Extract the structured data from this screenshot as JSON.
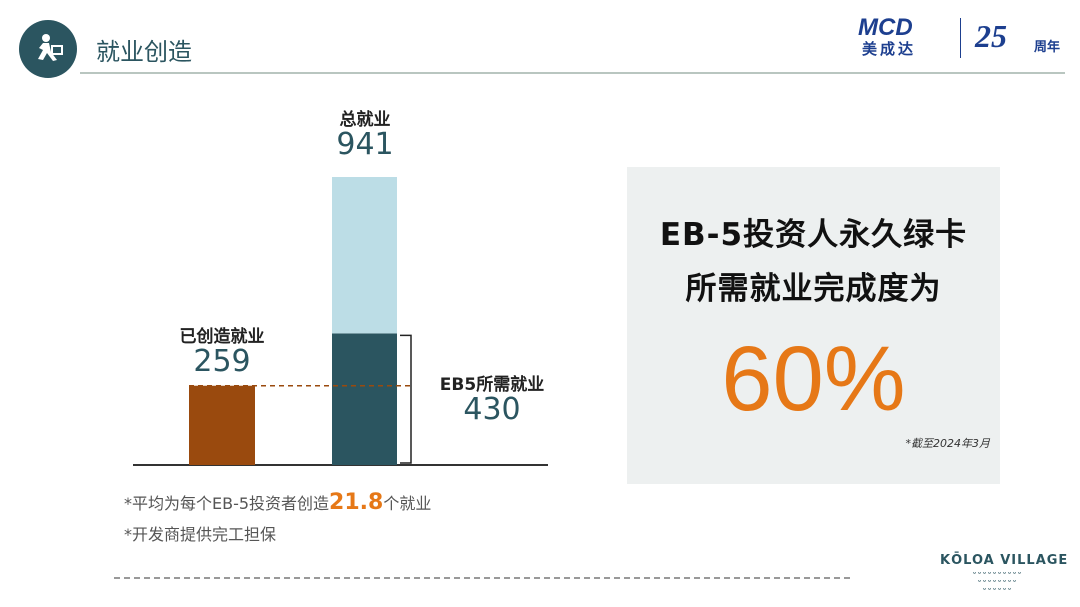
{
  "header": {
    "title": "就业创造",
    "icon": "running-businessman-icon",
    "brand": {
      "logo_text": "MCD",
      "chinese": "美成达",
      "anniversary": "25",
      "anniversary_unit": "周年"
    }
  },
  "chart_data": {
    "type": "bar",
    "categories": [
      "已创造就业",
      "总就业"
    ],
    "bars": [
      {
        "label": "已创造就业",
        "value": 259,
        "color": "#9a4a0e"
      },
      {
        "label": "总就业",
        "value": 941,
        "segments": [
          {
            "label": "EB5所需就业",
            "value": 430,
            "color": "#2b5560"
          },
          {
            "value": 511,
            "color": "#bcdde6"
          }
        ]
      }
    ],
    "value_labels": [
      "259",
      "941",
      "430"
    ],
    "annotations": [
      "EB5所需就业"
    ],
    "ylim": [
      0,
      941
    ],
    "grid": false
  },
  "panel": {
    "line1": "EB-5投资人永久绿卡",
    "line2": "所需就业完成度为",
    "percent": "60%",
    "progress": 0.6,
    "as_of": "*截至2024年3月"
  },
  "notes": {
    "n1_pre": "*平均为每个EB-5投资者创造",
    "n1_num": "21.8",
    "n1_post": "个就业",
    "n2": "*开发商提供完工担保"
  },
  "footer": {
    "brand": "KŌLOA VILLAGE"
  },
  "colors": {
    "accent": "#e67817",
    "primary": "#2b5560"
  }
}
